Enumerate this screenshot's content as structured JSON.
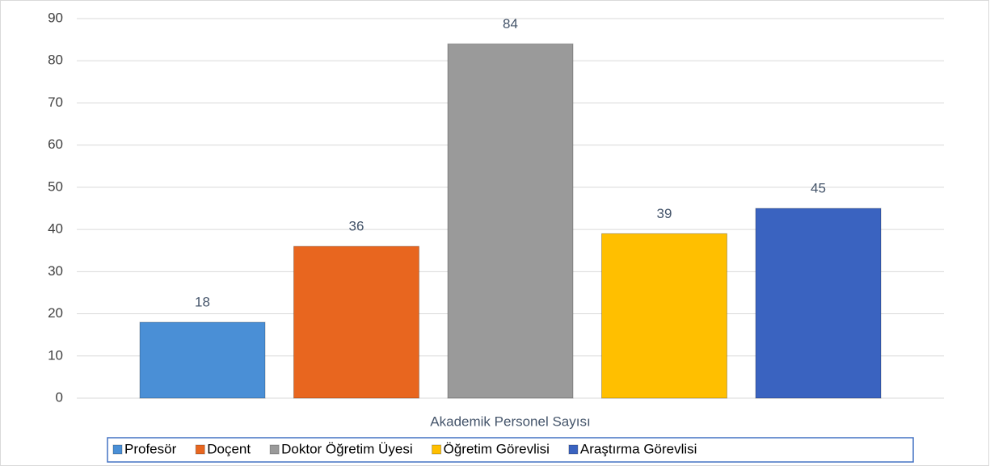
{
  "chart_data": {
    "type": "bar",
    "categories": [
      "Akademik Personel Sayısı"
    ],
    "series": [
      {
        "name": "Profesör",
        "color": "#4a8fd6",
        "values": [
          18
        ]
      },
      {
        "name": "Doçent",
        "color": "#e8661f",
        "values": [
          36
        ]
      },
      {
        "name": "Doktor Öğretim Üyesi",
        "color": "#9a9a9a",
        "values": [
          84
        ]
      },
      {
        "name": "Öğretim Görevlisi",
        "color": "#ffbf00",
        "values": [
          39
        ]
      },
      {
        "name": "Araştırma Görevlisi",
        "color": "#3a63c0",
        "values": [
          45
        ]
      }
    ],
    "ylim": [
      0,
      90
    ],
    "yticks": [
      0,
      10,
      20,
      30,
      40,
      50,
      60,
      70,
      80,
      90
    ],
    "grid": true,
    "legend": "bottom"
  }
}
